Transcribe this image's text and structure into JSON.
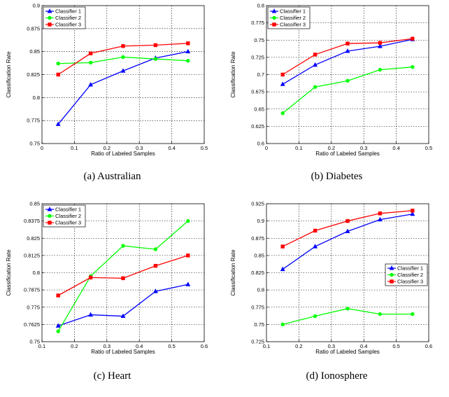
{
  "chart_data": [
    {
      "type": "line",
      "caption": "(a) Australian",
      "xlabel": "Ratio of Labeled Samples",
      "ylabel": "Classification Rate",
      "xlim": [
        0,
        0.5
      ],
      "ylim": [
        0.75,
        0.9
      ],
      "xticks": [
        "0",
        "0.1",
        "0.2",
        "0.3",
        "0.4",
        "0.5"
      ],
      "yticks": [
        "0.75",
        "0.775",
        "0.8",
        "0.825",
        "0.85",
        "0.875",
        "0.9"
      ],
      "grid": "dashed",
      "legend_position": "top-left",
      "x": [
        0.05,
        0.15,
        0.25,
        0.35,
        0.45
      ],
      "series": [
        {
          "name": "Classifier 1",
          "color": "#0000ff",
          "marker": "triangle",
          "values": [
            0.771,
            0.814,
            0.829,
            0.843,
            0.85
          ]
        },
        {
          "name": "Classifier 2",
          "color": "#00ff00",
          "marker": "circle",
          "values": [
            0.837,
            0.838,
            0.844,
            0.842,
            0.84
          ]
        },
        {
          "name": "Classifier 3",
          "color": "#ff0000",
          "marker": "square",
          "values": [
            0.825,
            0.848,
            0.856,
            0.857,
            0.859
          ]
        }
      ]
    },
    {
      "type": "line",
      "caption": "(b) Diabetes",
      "xlabel": "Ratio of Labeled Samples",
      "ylabel": "Classification Rate",
      "xlim": [
        0,
        0.5
      ],
      "ylim": [
        0.6,
        0.8
      ],
      "xticks": [
        "0",
        "0.1",
        "0.2",
        "0.3",
        "0.4",
        "0.5"
      ],
      "yticks": [
        "0.6",
        "0.625",
        "0.65",
        "0.675",
        "0.7",
        "0.725",
        "0.75",
        "0.775",
        "0.8"
      ],
      "grid": "dashed",
      "legend_position": "top-left",
      "x": [
        0.05,
        0.15,
        0.25,
        0.35,
        0.45
      ],
      "series": [
        {
          "name": "Classifier 1",
          "color": "#0000ff",
          "marker": "triangle",
          "values": [
            0.686,
            0.714,
            0.734,
            0.741,
            0.751
          ]
        },
        {
          "name": "Classifier 2",
          "color": "#00ff00",
          "marker": "circle",
          "values": [
            0.644,
            0.682,
            0.691,
            0.707,
            0.711
          ]
        },
        {
          "name": "Classifier 3",
          "color": "#ff0000",
          "marker": "square",
          "values": [
            0.7,
            0.729,
            0.745,
            0.746,
            0.752
          ]
        }
      ]
    },
    {
      "type": "line",
      "caption": "(c) Heart",
      "xlabel": "Ratio of Labeled Samples",
      "ylabel": "Classification Rate",
      "xlim": [
        0.1,
        0.6
      ],
      "ylim": [
        0.75,
        0.85
      ],
      "xticks": [
        "0.1",
        "0.2",
        "0.3",
        "0.4",
        "0.5",
        "0.6"
      ],
      "yticks": [
        "0.75",
        "0.7625",
        "0.775",
        "0.7875",
        "0.8",
        "0.8125",
        "0.825",
        "0.8375",
        "0.85"
      ],
      "grid": "dashed",
      "legend_position": "top-left",
      "x": [
        0.15,
        0.25,
        0.35,
        0.45,
        0.55
      ],
      "series": [
        {
          "name": "Classifier 1",
          "color": "#0000ff",
          "marker": "triangle",
          "values": [
            0.7615,
            0.7695,
            0.7685,
            0.7865,
            0.7915
          ]
        },
        {
          "name": "Classifier 2",
          "color": "#00ff00",
          "marker": "circle",
          "values": [
            0.7575,
            0.7975,
            0.8195,
            0.817,
            0.8375
          ]
        },
        {
          "name": "Classifier 3",
          "color": "#ff0000",
          "marker": "square",
          "values": [
            0.7835,
            0.7965,
            0.796,
            0.805,
            0.8125
          ]
        }
      ]
    },
    {
      "type": "line",
      "caption": "(d) Ionosphere",
      "xlabel": "Ratio of Labeled Samples",
      "ylabel": "Classification Rate",
      "xlim": [
        0.1,
        0.6
      ],
      "ylim": [
        0.725,
        0.925
      ],
      "xticks": [
        "0.1",
        "0.2",
        "0.3",
        "0.4",
        "0.5",
        "0.6"
      ],
      "yticks": [
        "0.725",
        "0.75",
        "0.775",
        "0.8",
        "0.825",
        "0.85",
        "0.875",
        "0.9",
        "0.925"
      ],
      "grid": "dashed",
      "legend_position": "right",
      "x": [
        0.15,
        0.25,
        0.35,
        0.45,
        0.55
      ],
      "series": [
        {
          "name": "Classifier 1",
          "color": "#0000ff",
          "marker": "triangle",
          "values": [
            0.83,
            0.863,
            0.885,
            0.902,
            0.91
          ]
        },
        {
          "name": "Classifier 2",
          "color": "#00ff00",
          "marker": "circle",
          "values": [
            0.75,
            0.762,
            0.773,
            0.765,
            0.765
          ]
        },
        {
          "name": "Classifier 3",
          "color": "#ff0000",
          "marker": "square",
          "values": [
            0.863,
            0.886,
            0.9,
            0.911,
            0.915
          ]
        }
      ]
    }
  ]
}
